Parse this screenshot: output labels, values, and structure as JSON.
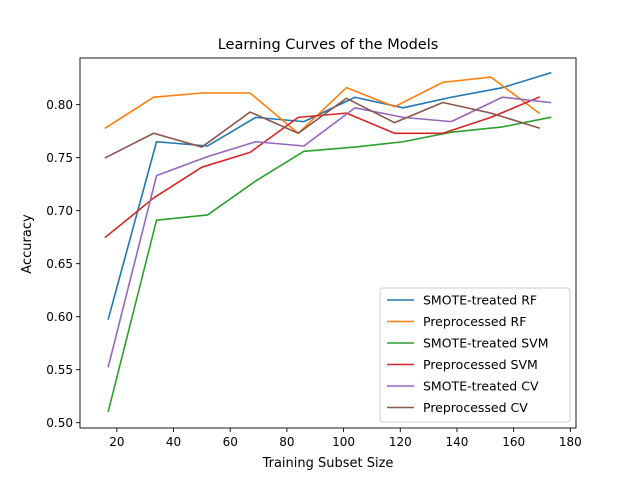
{
  "chart_data": {
    "type": "line",
    "title": "Learning Curves of the Models",
    "xlabel": "Training Subset Size",
    "ylabel": "Accuracy",
    "xlim": [
      7,
      182
    ],
    "ylim": [
      0.495,
      0.844
    ],
    "xticks": [
      20,
      40,
      60,
      80,
      100,
      120,
      140,
      160,
      180
    ],
    "xtick_labels": [
      "20",
      "40",
      "60",
      "80",
      "100",
      "120",
      "140",
      "160",
      "180"
    ],
    "yticks": [
      0.5,
      0.55,
      0.6,
      0.65,
      0.7,
      0.75,
      0.8
    ],
    "ytick_labels": [
      "0.50",
      "0.55",
      "0.60",
      "0.65",
      "0.70",
      "0.75",
      "0.80"
    ],
    "grid": false,
    "legend_position": "lower-right",
    "series": [
      {
        "name": "SMOTE-treated RF",
        "color": "#1f77b4",
        "x": [
          17,
          34,
          52,
          69,
          86,
          104,
          121,
          138,
          156,
          173
        ],
        "y": [
          0.598,
          0.765,
          0.761,
          0.788,
          0.784,
          0.807,
          0.797,
          0.807,
          0.816,
          0.83
        ]
      },
      {
        "name": "Preprocessed RF",
        "color": "#ff7f0e",
        "x": [
          16,
          33,
          50,
          67,
          84,
          101,
          118,
          135,
          152,
          169
        ],
        "y": [
          0.778,
          0.807,
          0.811,
          0.811,
          0.773,
          0.816,
          0.798,
          0.821,
          0.826,
          0.792
        ]
      },
      {
        "name": "SMOTE-treated SVM",
        "color": "#2ca02c",
        "x": [
          17,
          34,
          52,
          69,
          86,
          104,
          121,
          138,
          156,
          173
        ],
        "y": [
          0.511,
          0.691,
          0.696,
          0.728,
          0.756,
          0.76,
          0.765,
          0.774,
          0.779,
          0.788
        ]
      },
      {
        "name": "Preprocessed SVM",
        "color": "#d62728",
        "x": [
          16,
          33,
          50,
          67,
          84,
          101,
          118,
          135,
          152,
          169
        ],
        "y": [
          0.675,
          0.712,
          0.741,
          0.755,
          0.788,
          0.792,
          0.773,
          0.773,
          0.788,
          0.807
        ]
      },
      {
        "name": "SMOTE-treated  CV",
        "color": "#9467bd",
        "x": [
          17,
          34,
          52,
          69,
          86,
          104,
          121,
          138,
          156,
          173
        ],
        "y": [
          0.553,
          0.733,
          0.751,
          0.765,
          0.761,
          0.797,
          0.788,
          0.784,
          0.807,
          0.802
        ]
      },
      {
        "name": "Preprocessed  CV",
        "color": "#8c564b",
        "x": [
          16,
          33,
          50,
          67,
          84,
          101,
          118,
          135,
          152,
          169
        ],
        "y": [
          0.75,
          0.773,
          0.76,
          0.793,
          0.773,
          0.806,
          0.783,
          0.802,
          0.792,
          0.778
        ]
      }
    ]
  }
}
